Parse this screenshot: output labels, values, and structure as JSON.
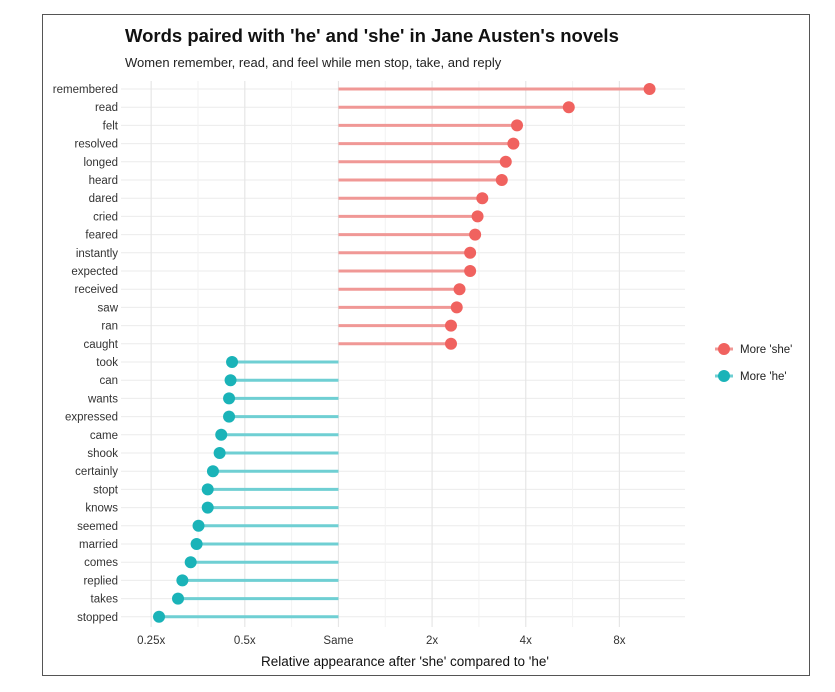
{
  "chart_data": {
    "type": "lollipop",
    "title": "Words paired with 'he' and 'she' in Jane Austen's novels",
    "subtitle": "Women remember, read, and feel while men stop, take, and reply",
    "xlabel": "Relative appearance after 'she' compared to 'he'",
    "ylabel": "",
    "x_scale": "log2",
    "xlim": [
      0.2,
      13
    ],
    "x_ticks": [
      {
        "value": 0.25,
        "label": "0.25x"
      },
      {
        "value": 0.5,
        "label": "0.5x"
      },
      {
        "value": 1,
        "label": "Same"
      },
      {
        "value": 2,
        "label": "2x"
      },
      {
        "value": 4,
        "label": "4x"
      },
      {
        "value": 8,
        "label": "8x"
      }
    ],
    "baseline": 1,
    "grid": true,
    "legend_position": "right",
    "series": [
      {
        "name": "More 'she'",
        "color": "#f0625f",
        "line_color": "#f09896",
        "words": [
          "remembered",
          "read",
          "felt",
          "resolved",
          "longed",
          "heard",
          "dared",
          "cried",
          "feared",
          "instantly",
          "expected",
          "received",
          "saw",
          "ran",
          "caught"
        ],
        "values": [
          10.0,
          5.5,
          3.75,
          3.65,
          3.45,
          3.35,
          2.9,
          2.8,
          2.75,
          2.65,
          2.65,
          2.45,
          2.4,
          2.3,
          2.3
        ]
      },
      {
        "name": "More 'he'",
        "color": "#1ab3b8",
        "line_color": "#6fcfd3",
        "words": [
          "took",
          "can",
          "wants",
          "expressed",
          "came",
          "shook",
          "certainly",
          "stopt",
          "knows",
          "seemed",
          "married",
          "comes",
          "replied",
          "takes",
          "stopped"
        ],
        "values": [
          0.455,
          0.45,
          0.445,
          0.445,
          0.42,
          0.415,
          0.395,
          0.38,
          0.38,
          0.355,
          0.35,
          0.335,
          0.315,
          0.305,
          0.265
        ]
      }
    ]
  }
}
